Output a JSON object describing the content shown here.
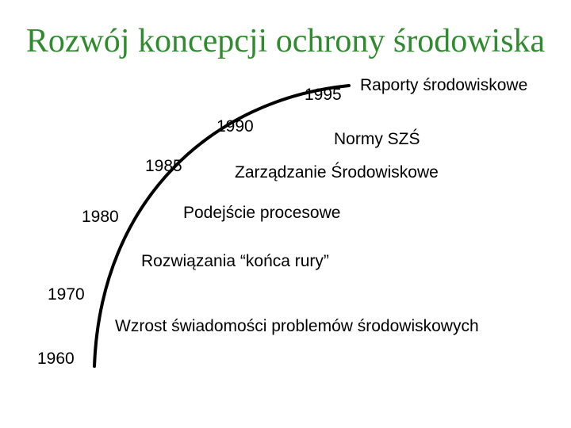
{
  "title": "Rozwój koncepcji ochrony środowiska",
  "years": {
    "y1995": "1995",
    "y1990": "1990",
    "y1985": "1985",
    "y1980": "1980",
    "y1970": "1970",
    "y1960": "1960"
  },
  "stages": {
    "raporty": "Raporty środowiskowe",
    "normy": "Normy SZŚ",
    "zarzadzanie": "Zarządzanie Środowiskowe",
    "podejscie": "Podejście procesowe",
    "rozwiazania": "Rozwiązania “końca rury”",
    "wzrost": "Wzrost świadomości problemów środowiskowych"
  },
  "colors": {
    "title": "#2e8b2e",
    "text": "#000000",
    "curve": "#000000"
  }
}
